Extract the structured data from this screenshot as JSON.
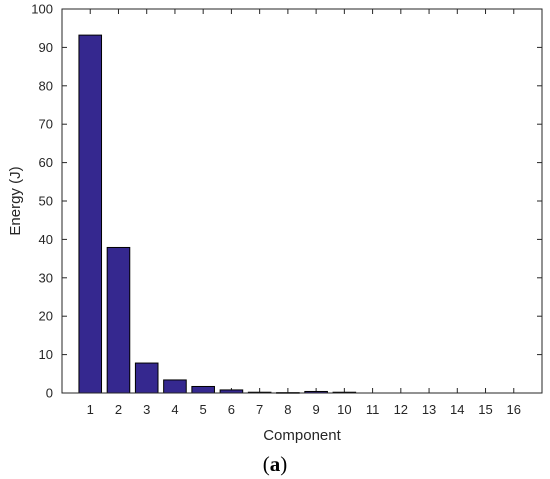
{
  "chart_data": {
    "type": "bar",
    "categories": [
      "1",
      "2",
      "3",
      "4",
      "5",
      "6",
      "7",
      "8",
      "9",
      "10",
      "11",
      "12",
      "13",
      "14",
      "15",
      "16"
    ],
    "values": [
      93.2,
      37.9,
      7.8,
      3.4,
      1.7,
      0.8,
      0.2,
      0.1,
      0.4,
      0.2,
      0.0,
      0.0,
      0.0,
      0.0,
      0.0,
      0.0
    ],
    "title": "",
    "xlabel": "Component",
    "ylabel": "Energy (J)",
    "ylim": [
      0,
      100
    ],
    "yticks": [
      0,
      10,
      20,
      30,
      40,
      50,
      60,
      70,
      80,
      90,
      100
    ],
    "grid": false,
    "bar_color": "#35288f"
  },
  "caption": {
    "open": "(",
    "letter": "a",
    "close": ")"
  }
}
